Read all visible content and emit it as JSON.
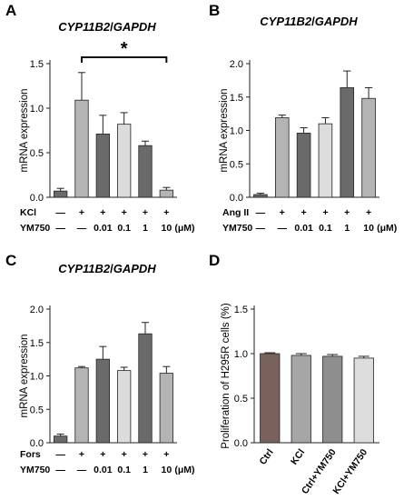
{
  "panels": {
    "A": {
      "letter": "A",
      "gene": "CYP11B2",
      "slash": "/",
      "ref": "GAPDH",
      "significance": "*"
    },
    "B": {
      "letter": "B",
      "gene": "CYP11B2",
      "slash": "/",
      "ref": "GAPDH"
    },
    "C": {
      "letter": "C",
      "gene": "CYP11B2",
      "slash": "/",
      "ref": "GAPDH"
    },
    "D": {
      "letter": "D"
    }
  },
  "chart_data": [
    {
      "panel": "A",
      "type": "bar",
      "title": "CYP11B2/GAPDH",
      "ylabel": "mRNA expression",
      "ylim": [
        0,
        1.5
      ],
      "yticks": [
        "0.0",
        "0.5",
        "1.0",
        "1.5"
      ],
      "values": [
        0.07,
        1.09,
        0.71,
        0.82,
        0.58,
        0.08
      ],
      "errors": [
        0.03,
        0.31,
        0.21,
        0.13,
        0.05,
        0.03
      ],
      "colors": [
        "#6a6a6a",
        "#b4b4b4",
        "#6a6a6a",
        "#dcdcdc",
        "#6a6a6a",
        "#b4b4b4"
      ],
      "rows": [
        {
          "label": "KCl",
          "cells": [
            "—",
            "+",
            "+",
            "+",
            "+",
            "+"
          ]
        },
        {
          "label": "YM750",
          "cells": [
            "—",
            "—",
            "0.01",
            "0.1",
            "1",
            "10"
          ],
          "unit": "(μM)"
        }
      ],
      "significance": {
        "from": 1,
        "to": 5,
        "label": "*"
      }
    },
    {
      "panel": "B",
      "type": "bar",
      "title": "CYP11B2/GAPDH",
      "ylabel": "mRNA expression",
      "ylim": [
        0,
        2.0
      ],
      "yticks": [
        "0.0",
        "0.5",
        "1.0",
        "1.5",
        "2.0"
      ],
      "values": [
        0.04,
        1.19,
        0.96,
        1.1,
        1.64,
        1.48
      ],
      "errors": [
        0.02,
        0.04,
        0.08,
        0.09,
        0.25,
        0.16
      ],
      "colors": [
        "#6a6a6a",
        "#b4b4b4",
        "#6a6a6a",
        "#dcdcdc",
        "#6a6a6a",
        "#b4b4b4"
      ],
      "rows": [
        {
          "label": "Ang II",
          "cells": [
            "—",
            "+",
            "+",
            "+",
            "+",
            "+"
          ]
        },
        {
          "label": "YM750",
          "cells": [
            "—",
            "—",
            "0.01",
            "0.1",
            "1",
            "10"
          ],
          "unit": "(μM)"
        }
      ]
    },
    {
      "panel": "C",
      "type": "bar",
      "title": "CYP11B2/GAPDH",
      "ylabel": "mRNA expression",
      "ylim": [
        0,
        2.0
      ],
      "yticks": [
        "0.0",
        "0.5",
        "1.0",
        "1.5",
        "2.0"
      ],
      "values": [
        0.1,
        1.12,
        1.25,
        1.08,
        1.63,
        1.04
      ],
      "errors": [
        0.03,
        0.02,
        0.19,
        0.05,
        0.17,
        0.1
      ],
      "colors": [
        "#6a6a6a",
        "#b4b4b4",
        "#6a6a6a",
        "#dcdcdc",
        "#6a6a6a",
        "#b4b4b4"
      ],
      "rows": [
        {
          "label": "Fors",
          "cells": [
            "—",
            "+",
            "+",
            "+",
            "+",
            "+"
          ]
        },
        {
          "label": "YM750",
          "cells": [
            "—",
            "—",
            "0.01",
            "0.1",
            "1",
            "10"
          ],
          "unit": "(μM)"
        }
      ]
    },
    {
      "panel": "D",
      "type": "bar",
      "ylabel": "Proliferation of H295R cells (%)",
      "ylim": [
        0,
        1.5
      ],
      "yticks": [
        "0.0",
        "0.5",
        "1.0",
        "1.5"
      ],
      "categories": [
        "Ctrl",
        "KCl",
        "Ctrl+YM750",
        "KCl+YM750"
      ],
      "values": [
        1.0,
        0.98,
        0.97,
        0.95
      ],
      "errors": [
        0.01,
        0.02,
        0.02,
        0.02
      ],
      "colors": [
        "#7a625c",
        "#a6a6a6",
        "#8e8e8e",
        "#dcdcdc"
      ]
    }
  ]
}
